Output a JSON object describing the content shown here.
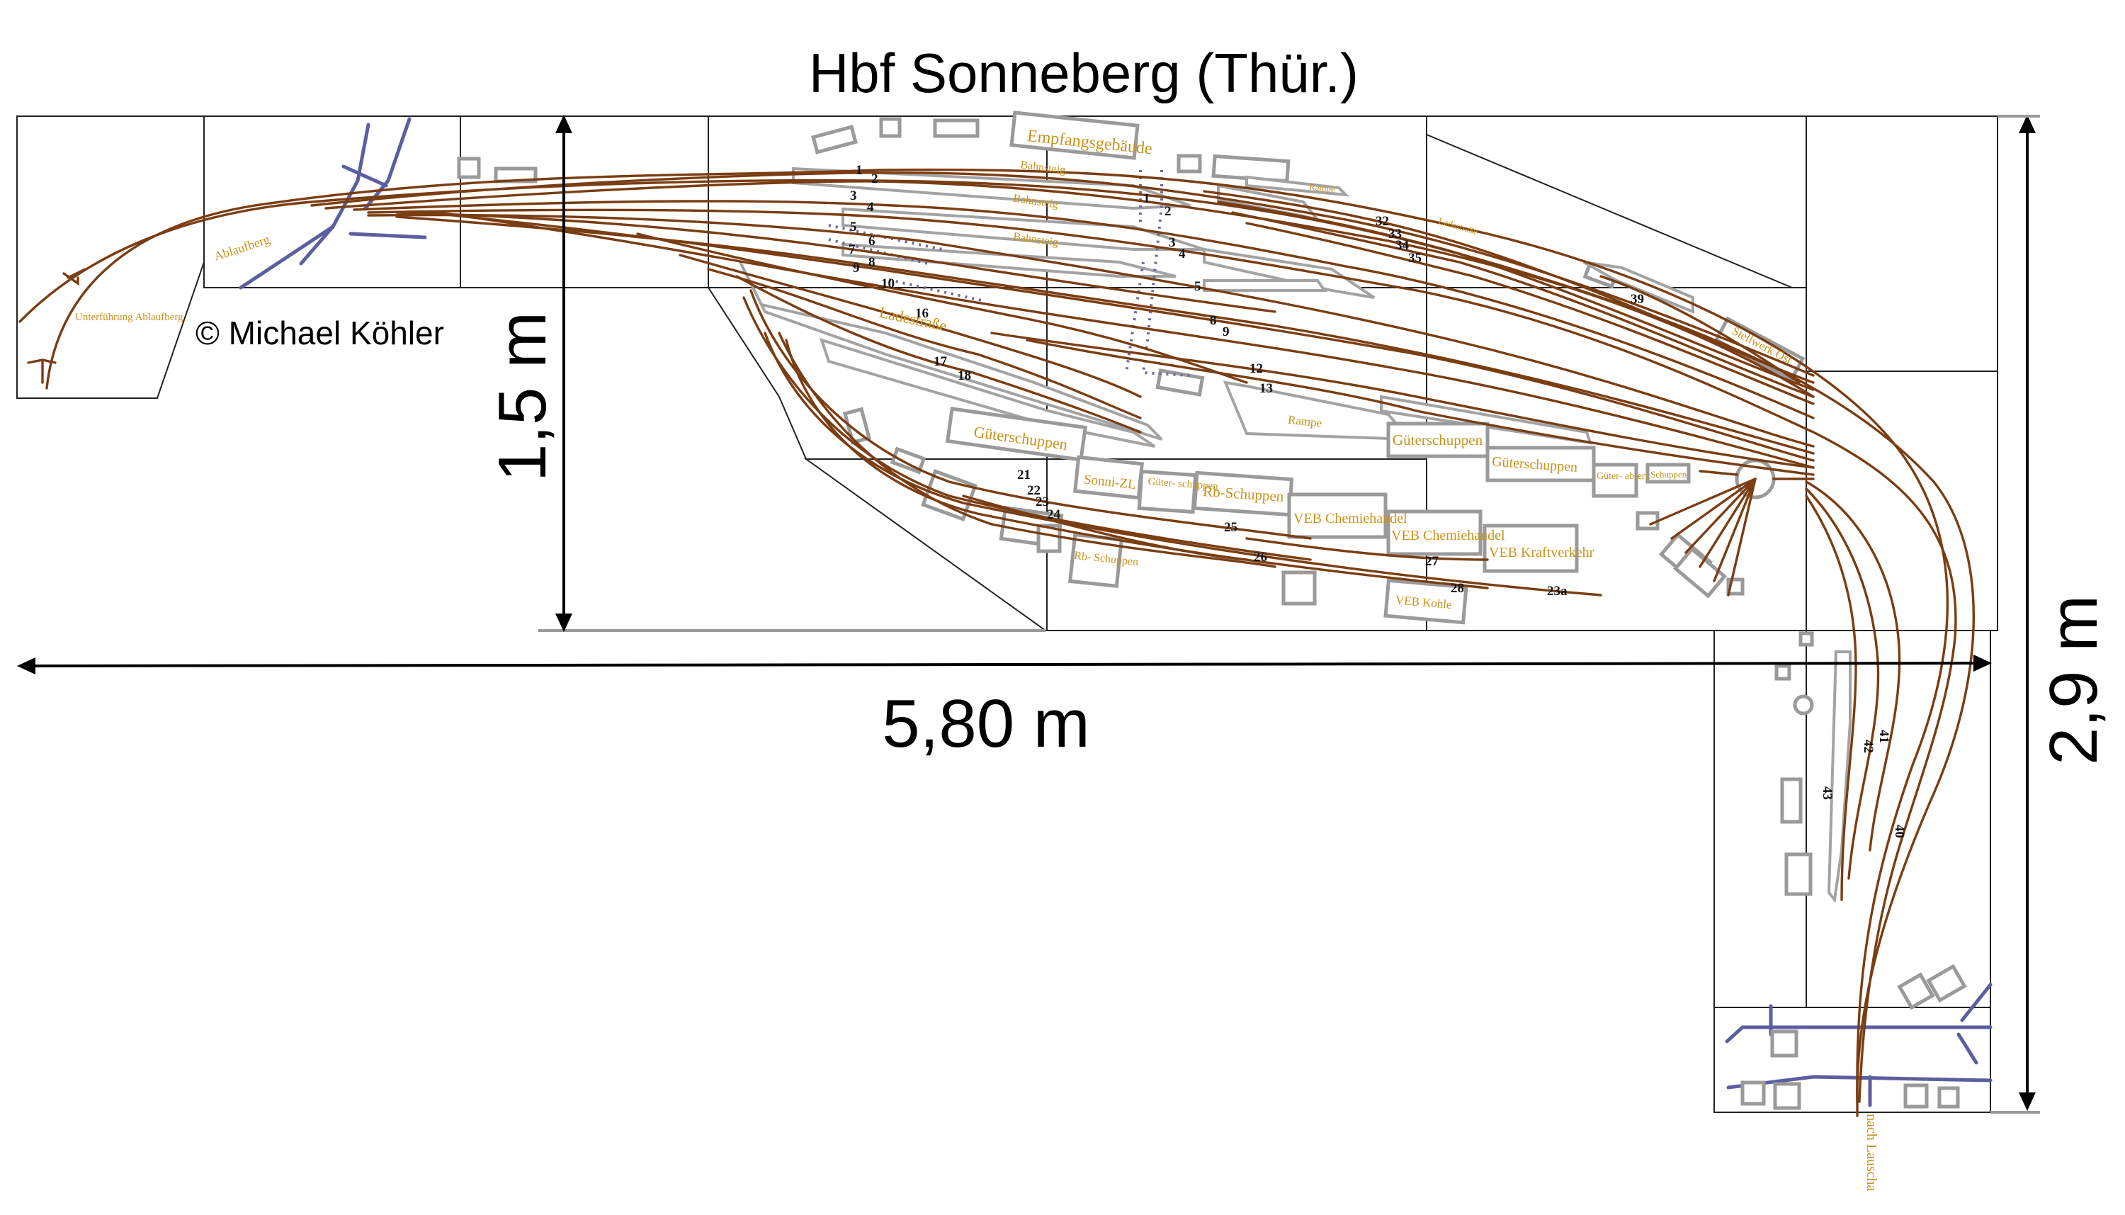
{
  "title": "Hbf Sonneberg (Thür.)",
  "copyright": "© Michael Köhler",
  "dimensions": {
    "length": "5,80 m",
    "depth": "1,5 m",
    "height": "2,9 m"
  },
  "labels": {
    "empfangsgebaeude": "Empfangsgebäude",
    "bahnsteig_1": "Bahnsteig",
    "bahnsteig_2": "Bahnsteig",
    "bahnsteig_3": "Bahnsteig",
    "ladestrasse_1": "Ladestraße",
    "ladestrasse_2": "Ladestraße",
    "ablaufberg": "Ablaufberg",
    "unterfuehrung": "Unterführung Ablaufberg",
    "gueterschuppen_1": "Güterschuppen",
    "gueterschuppen_2": "Güterschuppen",
    "gueterschuppen_3": "Güterschuppen",
    "gueterschuppen_small": "Güter- schuppen",
    "sonni_zl": "Sonni-ZL",
    "rb_schuppen_1": "Rb-Schuppen",
    "rb_schuppen_2": "Rb- Schuppen",
    "veb_chemiehandel_1": "VEB Chemiehandel",
    "veb_chemiehandel_2": "VEB Chemiehandel",
    "veb_kraftverkehr": "VEB Kraftverkehr",
    "veb_kohle": "VEB Kohle",
    "rampe_1": "Rampe",
    "rampe_2": "Rampe",
    "stellwerk_ost": "Stellwerk Ost",
    "gueterabfert": "Güter- abfert.",
    "schuppen": "Schuppen",
    "nach_lauscha": "nach Lauscha"
  },
  "track_numbers": [
    "1",
    "2",
    "3",
    "4",
    "5",
    "6",
    "7",
    "8",
    "9",
    "10",
    "16",
    "17",
    "18",
    "1",
    "2",
    "3",
    "4",
    "5",
    "8",
    "9",
    "12",
    "13",
    "21",
    "22",
    "23",
    "24",
    "25",
    "26",
    "27",
    "28",
    "23a",
    "32",
    "33",
    "34",
    "35",
    "39",
    "40",
    "41",
    "42",
    "43"
  ]
}
